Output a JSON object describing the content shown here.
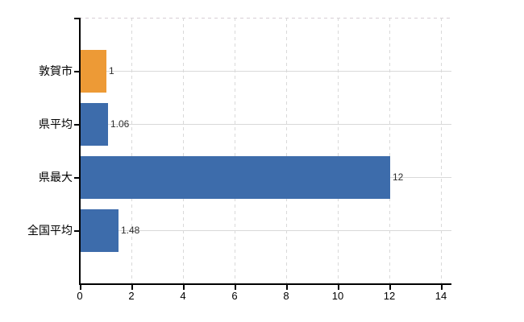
{
  "chart_data": {
    "type": "bar",
    "orientation": "horizontal",
    "title": "",
    "xlabel": "",
    "ylabel": "",
    "categories": [
      "敦賀市",
      "県平均",
      "県最大",
      "全国平均"
    ],
    "values": [
      1,
      1.06,
      12,
      1.48
    ],
    "value_labels": [
      "1",
      "1.06",
      "12",
      "1.48"
    ],
    "bar_colors": [
      "#ed9a36",
      "#3d6cab",
      "#3d6cab",
      "#3d6cab"
    ],
    "xlim": [
      0,
      14.4
    ],
    "xticks": [
      0,
      2,
      4,
      6,
      8,
      10,
      12,
      14
    ],
    "grid": true,
    "legend": "none",
    "colors": {
      "grid": "#d9d9d9",
      "axis": "#000000",
      "text": "#000000",
      "value_text": "#2e2e2e",
      "background": "#ffffff"
    }
  }
}
